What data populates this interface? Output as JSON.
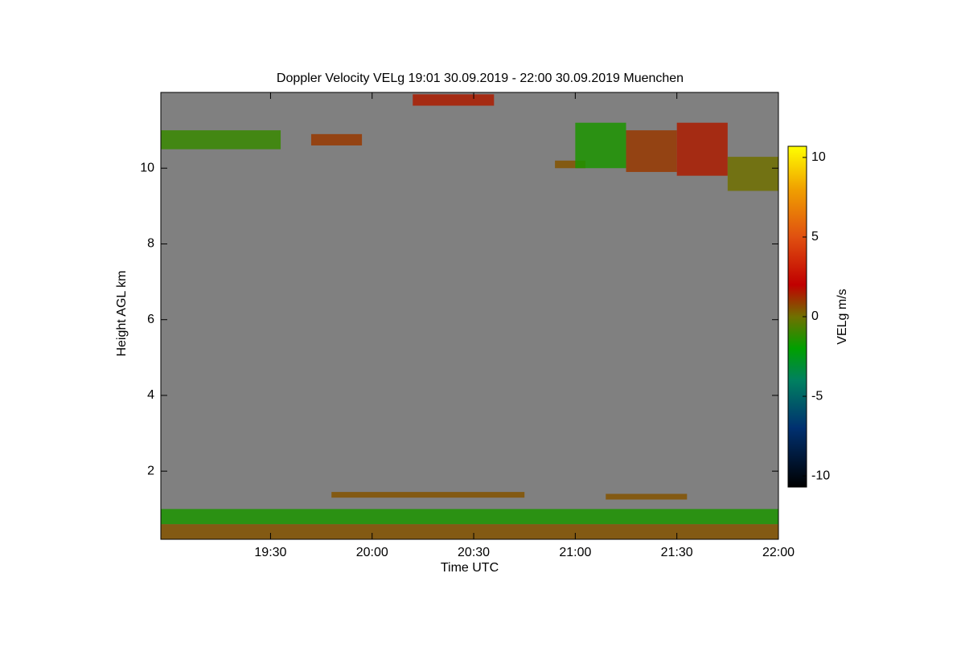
{
  "chart_data": {
    "type": "heatmap",
    "title": "Doppler Velocity VELg   19:01 30.09.2019 - 22:00 30.09.2019 Muenchen",
    "x_label": "Time UTC",
    "y_label": "Height AGL km",
    "xlim": [
      18.96,
      22.0
    ],
    "xticks": [
      {
        "value": 19.5,
        "label": "19:30"
      },
      {
        "value": 20.0,
        "label": "20:00"
      },
      {
        "value": 20.5,
        "label": "20:30"
      },
      {
        "value": 21.0,
        "label": "21:00"
      },
      {
        "value": 21.5,
        "label": "21:30"
      },
      {
        "value": 22.0,
        "label": "22:00"
      }
    ],
    "ylim": [
      0.2,
      12.0
    ],
    "yticks": [
      2,
      4,
      6,
      8,
      10
    ],
    "background_color": "#808080",
    "colorbar": {
      "label": "VELg m/s",
      "clim": [
        -10.7,
        10.7
      ],
      "ticks": [
        -10,
        -5,
        0,
        5,
        10
      ],
      "colormap": [
        [
          -10.7,
          "#000000"
        ],
        [
          -7,
          "#003070"
        ],
        [
          -4,
          "#008060"
        ],
        [
          -2,
          "#00a000"
        ],
        [
          0,
          "#707000"
        ],
        [
          2,
          "#c00000"
        ],
        [
          5,
          "#e05010"
        ],
        [
          8,
          "#f0a000"
        ],
        [
          10.7,
          "#ffff00"
        ]
      ]
    },
    "cells": [
      {
        "x": [
          18.96,
          19.55
        ],
        "y": [
          10.5,
          11.0
        ],
        "value": -1
      },
      {
        "x": [
          19.7,
          19.95
        ],
        "y": [
          10.6,
          10.9
        ],
        "value": 1
      },
      {
        "x": [
          20.2,
          20.6
        ],
        "y": [
          11.65,
          11.95
        ],
        "value": 1.5
      },
      {
        "x": [
          20.9,
          21.05
        ],
        "y": [
          10.0,
          10.2
        ],
        "value": 0.5
      },
      {
        "x": [
          21.0,
          21.25
        ],
        "y": [
          10.0,
          11.2
        ],
        "value": -1.5
      },
      {
        "x": [
          21.25,
          21.5
        ],
        "y": [
          9.9,
          11.0
        ],
        "value": 1
      },
      {
        "x": [
          21.5,
          21.75
        ],
        "y": [
          9.8,
          11.2
        ],
        "value": 1.5
      },
      {
        "x": [
          21.75,
          22.0
        ],
        "y": [
          9.4,
          10.3
        ],
        "value": 0
      },
      {
        "x": [
          18.96,
          22.0
        ],
        "y": [
          0.2,
          0.6
        ],
        "value": 0.5
      },
      {
        "x": [
          18.96,
          22.0
        ],
        "y": [
          0.6,
          1.0
        ],
        "value": -1.5
      },
      {
        "x": [
          19.8,
          20.75
        ],
        "y": [
          1.3,
          1.45
        ],
        "value": 0.5
      },
      {
        "x": [
          21.15,
          21.55
        ],
        "y": [
          1.25,
          1.4
        ],
        "value": 0.5
      }
    ]
  }
}
